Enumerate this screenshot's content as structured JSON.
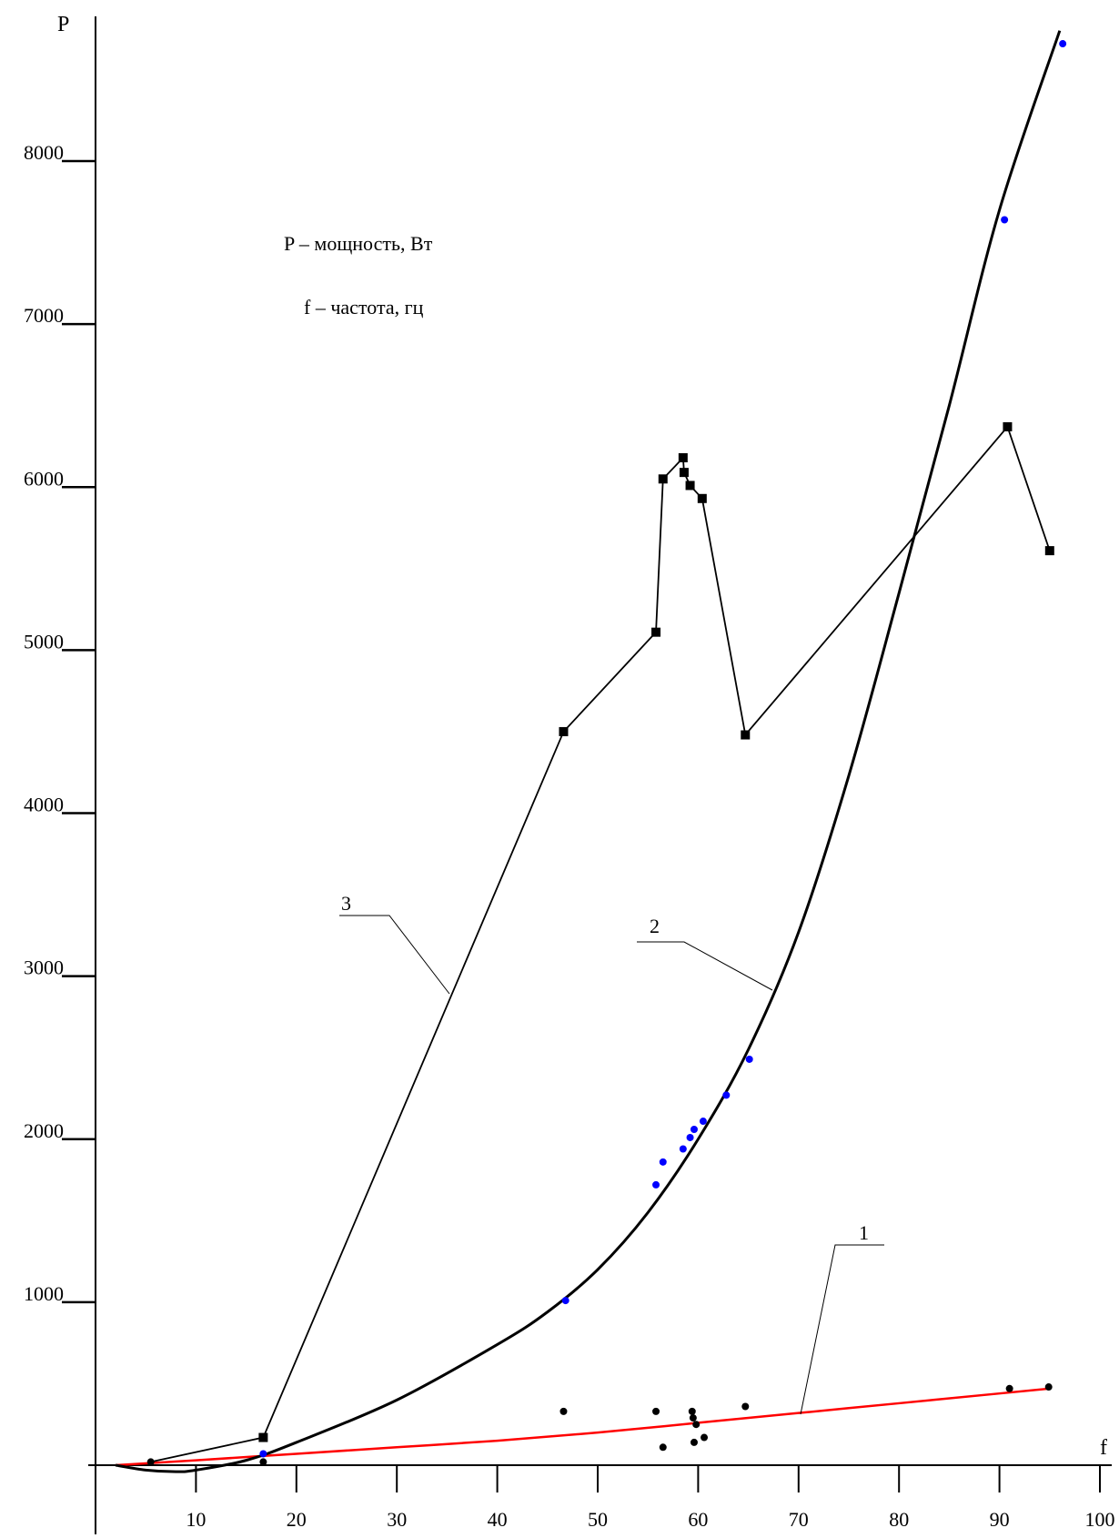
{
  "chart_data": {
    "type": "scatter",
    "title": "",
    "xlabel": "f",
    "ylabel": "P",
    "xlim": [
      0,
      100
    ],
    "ylim": [
      -300,
      8800
    ],
    "grid": false,
    "x_ticks": [
      "10",
      "20",
      "30",
      "40",
      "50",
      "60",
      "70",
      "80",
      "90",
      "100"
    ],
    "y_ticks": [
      "1000",
      "2000",
      "3000",
      "4000",
      "5000",
      "6000",
      "7000",
      "8000"
    ],
    "annotations": [
      "P – мощность, Вт",
      "f  – частота, гц"
    ],
    "series": [
      {
        "name": "1",
        "color": "#ff0000",
        "kind": "fit-line",
        "x": [
          2,
          10,
          20,
          30,
          40,
          50,
          60,
          70,
          80,
          90,
          95
        ],
        "y": [
          0,
          30,
          70,
          110,
          150,
          200,
          260,
          320,
          380,
          440,
          470
        ]
      },
      {
        "name": "1-points",
        "color": "#000000",
        "kind": "points",
        "x": [
          5.5,
          16.7,
          46.6,
          55.8,
          56.5,
          59.4,
          59.5,
          59.6,
          59.8,
          60.6,
          64.7,
          91,
          94.9
        ],
        "y": [
          20,
          20,
          330,
          330,
          110,
          330,
          290,
          140,
          250,
          170,
          360,
          470,
          480
        ]
      },
      {
        "name": "2",
        "color": "#000000",
        "kind": "fit-curve",
        "x": [
          2,
          5,
          8,
          10,
          15,
          20,
          30,
          40,
          45,
          50,
          55,
          60,
          65,
          70,
          75,
          80,
          85,
          90,
          96
        ],
        "y": [
          0,
          -30,
          -40,
          -30,
          30,
          140,
          400,
          740,
          940,
          1200,
          1550,
          2000,
          2550,
          3270,
          4230,
          5350,
          6500,
          7700,
          8800
        ]
      },
      {
        "name": "2-points",
        "color": "#0000ff",
        "kind": "points",
        "x": [
          16.7,
          46.8,
          55.8,
          56.5,
          58.5,
          59.2,
          59.6,
          60.5,
          62.8,
          65.1,
          90.5,
          96.3
        ],
        "y": [
          70,
          1010,
          1720,
          1860,
          1940,
          2010,
          2060,
          2110,
          2270,
          2490,
          7640,
          8720
        ]
      },
      {
        "name": "3",
        "color": "#000000",
        "kind": "polyline-square-markers",
        "x": [
          5.5,
          16.7,
          46.6,
          55.8,
          56.5,
          58.5,
          58.6,
          59.2,
          60.4,
          64.7,
          90.8,
          95.0
        ],
        "y": [
          20,
          170,
          4500,
          5110,
          6050,
          6180,
          6090,
          6010,
          5930,
          4480,
          6370,
          5610
        ]
      }
    ]
  }
}
